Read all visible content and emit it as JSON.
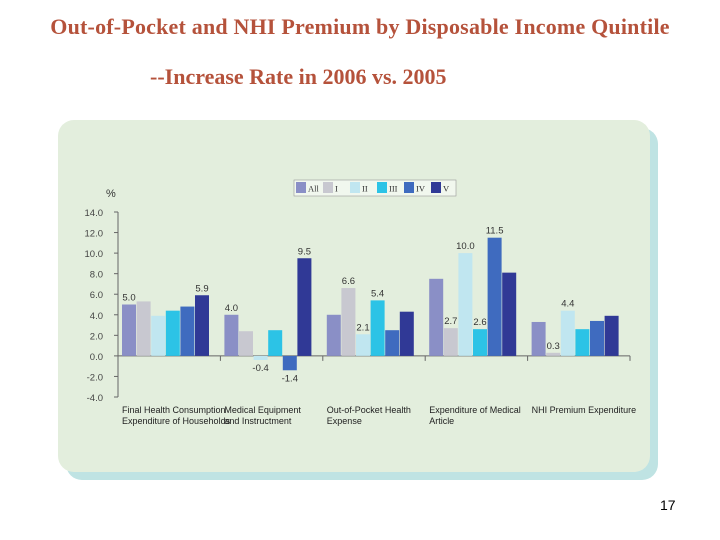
{
  "title": "Out-of-Pocket and NHI Premium by Disposable Income Quintile",
  "subtitle": "--Increase Rate in 2006 vs. 2005",
  "page_number": "17",
  "chart_data": {
    "type": "bar",
    "ylabel": "%",
    "ylim": [
      -4.0,
      14.0
    ],
    "yticks": [
      "14.0",
      "12.0",
      "10.0",
      "8.0",
      "6.0",
      "4.0",
      "2.0",
      "0.0",
      "-2.0",
      "-4.0"
    ],
    "ytick_values": [
      14,
      12,
      10,
      8,
      6,
      4,
      2,
      0,
      -2,
      -4
    ],
    "categories": [
      [
        "Final Health Consumption",
        "Expenditure of Households"
      ],
      [
        "Medical Equipment",
        "and Instructment"
      ],
      [
        "Out-of-Pocket Health",
        "Expense"
      ],
      [
        "Expenditure of Medical",
        "Article"
      ],
      [
        "NHI Premium Expenditure"
      ]
    ],
    "series": [
      {
        "name": "All",
        "color": "#8a8fc6",
        "values": [
          5.0,
          4.0,
          4.0,
          7.5,
          3.3
        ]
      },
      {
        "name": "I",
        "color": "#c8c8d0",
        "values": [
          5.3,
          2.4,
          6.6,
          2.7,
          0.3
        ]
      },
      {
        "name": "II",
        "color": "#c0e6f0",
        "values": [
          3.9,
          -0.4,
          2.1,
          10.0,
          4.4
        ]
      },
      {
        "name": "III",
        "color": "#2cc3e6",
        "values": [
          4.4,
          2.5,
          5.4,
          2.6,
          2.6
        ]
      },
      {
        "name": "IV",
        "color": "#3f6bbf",
        "values": [
          4.8,
          -1.4,
          2.5,
          11.5,
          3.4
        ]
      },
      {
        "name": "V",
        "color": "#303996",
        "values": [
          5.9,
          9.5,
          4.3,
          8.1,
          3.9
        ]
      }
    ],
    "data_labels": [
      {
        "group": 0,
        "series": 0,
        "text": "5.0"
      },
      {
        "group": 0,
        "series": 5,
        "text": "5.9"
      },
      {
        "group": 1,
        "series": 0,
        "text": "4.0"
      },
      {
        "group": 1,
        "series": 2,
        "text": "-0.4"
      },
      {
        "group": 1,
        "series": 4,
        "text": "-1.4"
      },
      {
        "group": 1,
        "series": 5,
        "text": "9.5"
      },
      {
        "group": 2,
        "series": 1,
        "text": "6.6"
      },
      {
        "group": 2,
        "series": 2,
        "text": "2.1"
      },
      {
        "group": 2,
        "series": 3,
        "text": "5.4"
      },
      {
        "group": 3,
        "series": 1,
        "text": "2.7"
      },
      {
        "group": 3,
        "series": 2,
        "text": "10.0"
      },
      {
        "group": 3,
        "series": 3,
        "text": "2.6"
      },
      {
        "group": 3,
        "series": 4,
        "text": "11.5"
      },
      {
        "group": 4,
        "series": 1,
        "text": "0.3"
      },
      {
        "group": 4,
        "series": 2,
        "text": "4.4"
      }
    ]
  }
}
